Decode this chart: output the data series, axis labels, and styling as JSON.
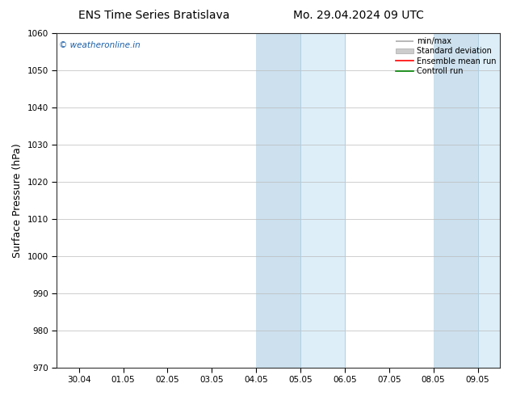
{
  "title_left": "ENS Time Series Bratislava",
  "title_right": "Mo. 29.04.2024 09 UTC",
  "ylabel": "Surface Pressure (hPa)",
  "ylim": [
    970,
    1060
  ],
  "yticks": [
    970,
    980,
    990,
    1000,
    1010,
    1020,
    1030,
    1040,
    1050,
    1060
  ],
  "x_labels": [
    "30.04",
    "01.05",
    "02.05",
    "03.05",
    "04.05",
    "05.05",
    "06.05",
    "07.05",
    "08.05",
    "09.05"
  ],
  "x_values": [
    0,
    1,
    2,
    3,
    4,
    5,
    6,
    7,
    8,
    9
  ],
  "xlim": [
    -0.5,
    9.5
  ],
  "shaded_bands": [
    {
      "x_start": 4.0,
      "x_end": 5.0,
      "color": "#cce0ee"
    },
    {
      "x_start": 5.0,
      "x_end": 6.0,
      "color": "#ddeef8"
    },
    {
      "x_start": 8.0,
      "x_end": 9.0,
      "color": "#cce0ee"
    },
    {
      "x_start": 9.0,
      "x_end": 9.5,
      "color": "#ddeef8"
    }
  ],
  "band_separators": [
    5.0,
    6.0,
    9.0
  ],
  "watermark": "© weatheronline.in",
  "watermark_color": "#1a5fa8",
  "bg_color": "#ffffff",
  "plot_bg_color": "#ffffff",
  "grid_color": "#bbbbbb",
  "title_fontsize": 10,
  "tick_fontsize": 7.5,
  "ylabel_fontsize": 9
}
